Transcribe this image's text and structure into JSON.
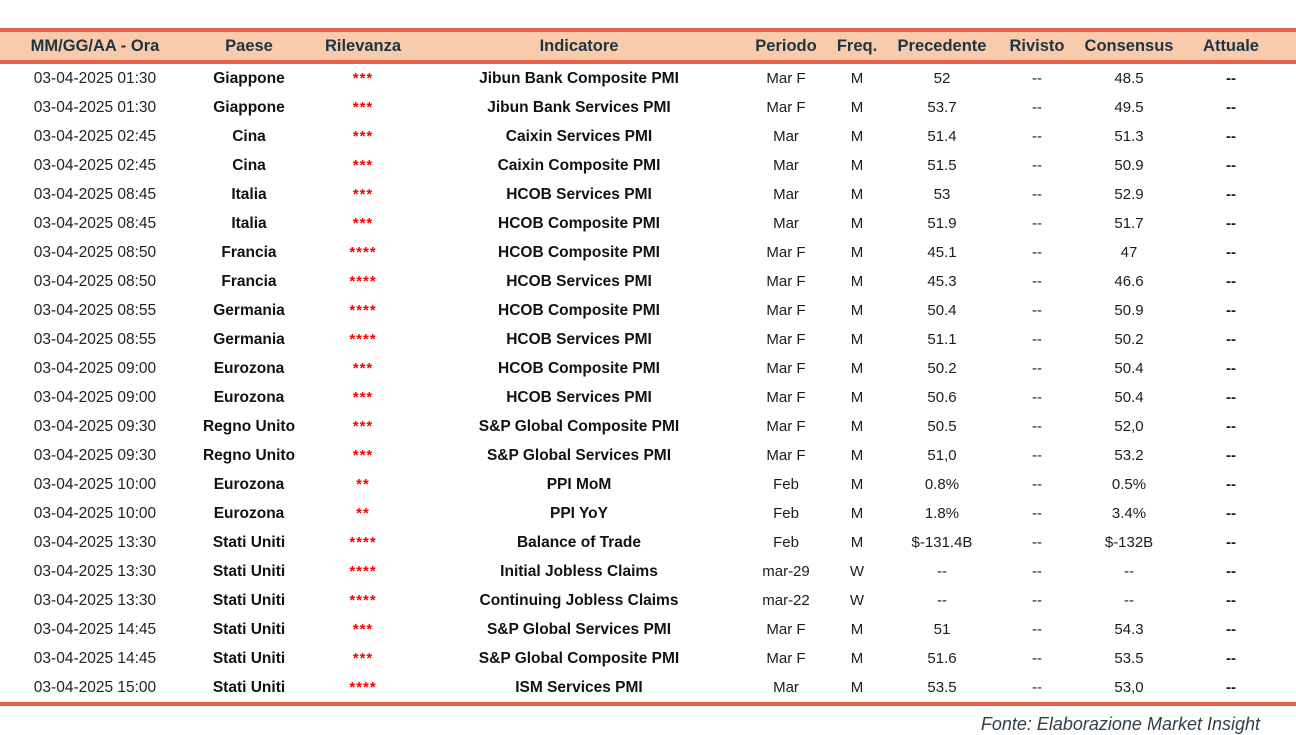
{
  "colors": {
    "accent_line": "#e8614b",
    "header_bg": "#f8cbad",
    "header_text": "#1e3440",
    "star_red": "#fe0000"
  },
  "table": {
    "columns": [
      {
        "key": "datetime",
        "label": "MM/GG/AA - Ora"
      },
      {
        "key": "country",
        "label": "Paese"
      },
      {
        "key": "relevance",
        "label": "Rilevanza"
      },
      {
        "key": "indicator",
        "label": "Indicatore"
      },
      {
        "key": "period",
        "label": "Periodo"
      },
      {
        "key": "freq",
        "label": "Freq."
      },
      {
        "key": "previous",
        "label": "Precedente"
      },
      {
        "key": "revised",
        "label": "Rivisto"
      },
      {
        "key": "consensus",
        "label": "Consensus"
      },
      {
        "key": "actual",
        "label": "Attuale"
      }
    ],
    "rows": [
      [
        "03-04-2025 01:30",
        "Giappone",
        "***",
        "Jibun Bank Composite PMI",
        "Mar F",
        "M",
        "52",
        "--",
        "48.5",
        "--"
      ],
      [
        "03-04-2025 01:30",
        "Giappone",
        "***",
        "Jibun Bank Services PMI",
        "Mar F",
        "M",
        "53.7",
        "--",
        "49.5",
        "--"
      ],
      [
        "03-04-2025 02:45",
        "Cina",
        "***",
        "Caixin Services PMI",
        "Mar",
        "M",
        "51.4",
        "--",
        "51.3",
        "--"
      ],
      [
        "03-04-2025 02:45",
        "Cina",
        "***",
        "Caixin Composite PMI",
        "Mar",
        "M",
        "51.5",
        "--",
        "50.9",
        "--"
      ],
      [
        "03-04-2025 08:45",
        "Italia",
        "***",
        "HCOB Services PMI",
        "Mar",
        "M",
        "53",
        "--",
        "52.9",
        "--"
      ],
      [
        "03-04-2025 08:45",
        "Italia",
        "***",
        "HCOB Composite PMI",
        "Mar",
        "M",
        "51.9",
        "--",
        "51.7",
        "--"
      ],
      [
        "03-04-2025 08:50",
        "Francia",
        "****",
        "HCOB Composite PMI",
        "Mar F",
        "M",
        "45.1",
        "--",
        "47",
        "--"
      ],
      [
        "03-04-2025 08:50",
        "Francia",
        "****",
        "HCOB Services PMI",
        "Mar F",
        "M",
        "45.3",
        "--",
        "46.6",
        "--"
      ],
      [
        "03-04-2025 08:55",
        "Germania",
        "****",
        "HCOB Composite PMI",
        "Mar F",
        "M",
        "50.4",
        "--",
        "50.9",
        "--"
      ],
      [
        "03-04-2025 08:55",
        "Germania",
        "****",
        "HCOB Services PMI",
        "Mar F",
        "M",
        "51.1",
        "--",
        "50.2",
        "--"
      ],
      [
        "03-04-2025 09:00",
        "Eurozona",
        "***",
        "HCOB Composite PMI",
        "Mar F",
        "M",
        "50.2",
        "--",
        "50.4",
        "--"
      ],
      [
        "03-04-2025 09:00",
        "Eurozona",
        "***",
        "HCOB Services PMI",
        "Mar F",
        "M",
        "50.6",
        "--",
        "50.4",
        "--"
      ],
      [
        "03-04-2025 09:30",
        "Regno Unito",
        "***",
        "S&P Global Composite PMI",
        "Mar F",
        "M",
        "50.5",
        "--",
        "52,0",
        "--"
      ],
      [
        "03-04-2025 09:30",
        "Regno Unito",
        "***",
        "S&P Global Services PMI",
        "Mar F",
        "M",
        "51,0",
        "--",
        "53.2",
        "--"
      ],
      [
        "03-04-2025 10:00",
        "Eurozona",
        "**",
        "PPI MoM",
        "Feb",
        "M",
        "0.8%",
        "--",
        "0.5%",
        "--"
      ],
      [
        "03-04-2025 10:00",
        "Eurozona",
        "**",
        "PPI YoY",
        "Feb",
        "M",
        "1.8%",
        "--",
        "3.4%",
        "--"
      ],
      [
        "03-04-2025 13:30",
        "Stati Uniti",
        "****",
        "Balance of Trade",
        "Feb",
        "M",
        "$-131.4B",
        "--",
        "$-132B",
        "--"
      ],
      [
        "03-04-2025 13:30",
        "Stati Uniti",
        "****",
        "Initial Jobless Claims",
        "mar-29",
        "W",
        "--",
        "--",
        "--",
        "--"
      ],
      [
        "03-04-2025 13:30",
        "Stati Uniti",
        "****",
        "Continuing Jobless Claims",
        "mar-22",
        "W",
        "--",
        "--",
        "--",
        "--"
      ],
      [
        "03-04-2025 14:45",
        "Stati Uniti",
        "***",
        "S&P Global Services PMI",
        "Mar F",
        "M",
        "51",
        "--",
        "54.3",
        "--"
      ],
      [
        "03-04-2025 14:45",
        "Stati Uniti",
        "***",
        "S&P Global Composite PMI",
        "Mar F",
        "M",
        "51.6",
        "--",
        "53.5",
        "--"
      ],
      [
        "03-04-2025 15:00",
        "Stati Uniti",
        "****",
        "ISM Services PMI",
        "Mar",
        "M",
        "53.5",
        "--",
        "53,0",
        "--"
      ]
    ]
  },
  "footer": {
    "source_label": "Fonte: Elaborazione Market Insight"
  }
}
